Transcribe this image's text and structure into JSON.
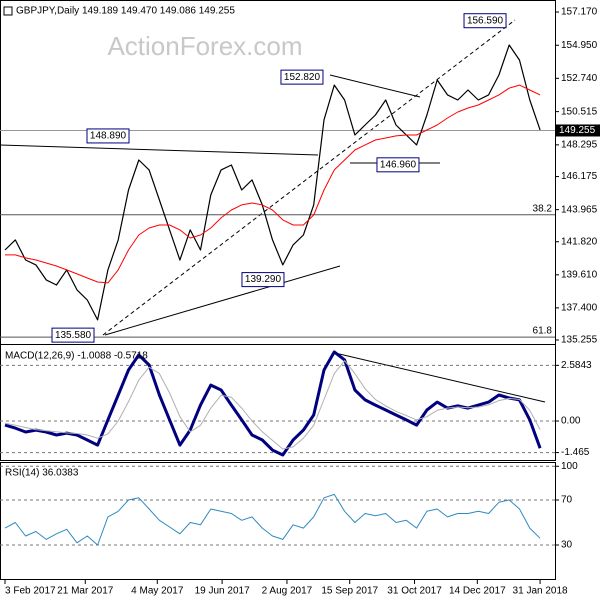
{
  "chart_data": [
    {
      "type": "line",
      "title": "GBPJPY,Daily  149.189 149.470 149.086 149.255",
      "watermark": "ActionForex.com",
      "x": [
        0,
        1,
        2,
        3,
        4,
        5,
        6,
        7,
        8,
        9,
        10,
        11,
        12,
        13,
        14,
        15,
        16,
        17,
        18,
        19,
        20,
        21,
        22,
        23,
        24,
        25,
        26,
        27,
        28,
        29,
        30,
        31,
        32,
        33,
        34,
        35,
        36,
        37,
        38,
        39,
        40,
        41,
        42,
        43,
        44,
        45,
        46,
        47,
        48,
        49,
        50,
        51,
        52
      ],
      "xlim": [
        -0.486,
        53.45
      ],
      "ylim": [
        134.92,
        157.64
      ],
      "grid": false,
      "yticks": [
        {
          "value": 157.17,
          "label": "157.170"
        },
        {
          "value": 154.95,
          "label": "154.950"
        },
        {
          "value": 152.74,
          "label": "152.740"
        },
        {
          "value": 150.515,
          "label": "150.515"
        },
        {
          "value": 148.295,
          "label": "148.295"
        },
        {
          "value": 146.175,
          "label": "146.175"
        },
        {
          "value": 143.965,
          "label": "143.965"
        },
        {
          "value": 141.82,
          "label": "141.820"
        },
        {
          "value": 139.61,
          "label": "139.610"
        },
        {
          "value": 137.4,
          "label": "137.400"
        },
        {
          "value": 135.255,
          "label": "135.255"
        }
      ],
      "series": [
        {
          "color": "#000000",
          "values": [
            141.27,
            141.94,
            140.6,
            140.27,
            139.27,
            138.93,
            139.94,
            138.6,
            137.93,
            136.6,
            139.94,
            141.94,
            145.28,
            147.28,
            146.62,
            144.61,
            142.61,
            140.6,
            142.61,
            141.27,
            144.95,
            146.62,
            146.95,
            145.28,
            145.95,
            144.28,
            141.94,
            140.27,
            141.61,
            142.27,
            144.28,
            149.96,
            152.29,
            151.29,
            148.95,
            149.62,
            150.29,
            151.29,
            149.62,
            148.95,
            148.29,
            150.29,
            152.63,
            151.63,
            151.29,
            151.96,
            151.29,
            151.63,
            152.96,
            154.97,
            153.96,
            151.29,
            149.29
          ]
        },
        {
          "color": "#ff0000",
          "values": [
            140.94,
            140.94,
            140.74,
            140.6,
            140.4,
            140.2,
            139.94,
            139.67,
            139.4,
            139.13,
            139.07,
            139.94,
            141.27,
            142.27,
            142.74,
            142.94,
            142.94,
            142.61,
            142.07,
            142.27,
            142.74,
            143.41,
            143.94,
            144.28,
            144.41,
            144.28,
            143.94,
            143.28,
            142.94,
            142.94,
            143.61,
            145.28,
            146.62,
            147.28,
            147.95,
            148.29,
            148.62,
            148.75,
            148.89,
            148.95,
            148.95,
            149.29,
            149.62,
            150.09,
            150.49,
            150.76,
            150.96,
            151.29,
            151.63,
            152.09,
            152.29,
            151.96,
            151.63
          ]
        }
      ],
      "current": {
        "label": "149.255",
        "value": 149.255
      },
      "levels": [
        {
          "label": "38.2",
          "value": 143.62
        },
        {
          "label": "61.8",
          "value": 135.45
        }
      ],
      "annotations": [
        {
          "label": "156.590",
          "value": 156.59,
          "x": 46.65
        },
        {
          "label": "152.820",
          "value": 152.82,
          "x": 28.86
        },
        {
          "label": "148.890",
          "value": 148.89,
          "x": 10.01
        },
        {
          "label": "146.960",
          "value": 146.96,
          "x": 38.19
        },
        {
          "label": "139.290",
          "value": 139.29,
          "x": 25.07
        },
        {
          "label": "135.580",
          "value": 135.58,
          "x": 6.61
        }
      ]
    },
    {
      "type": "line",
      "title": "MACD(12,26,9) -1.0088 -0.5718",
      "x": [
        0,
        1,
        2,
        3,
        4,
        5,
        6,
        7,
        8,
        9,
        10,
        11,
        12,
        13,
        14,
        15,
        16,
        17,
        18,
        19,
        20,
        21,
        22,
        23,
        24,
        25,
        26,
        27,
        28,
        29,
        30,
        31,
        32,
        33,
        34,
        35,
        36,
        37,
        38,
        39,
        40,
        41,
        42,
        43,
        44,
        45,
        46,
        47,
        48,
        49,
        50,
        51,
        52
      ],
      "xlim": [
        -0.486,
        53.45
      ],
      "ylim": [
        -1.81,
        3.53
      ],
      "grid": true,
      "yticks": [
        2.5843,
        {
          "value": 0,
          "label": "0.00"
        },
        -1.465
      ],
      "series": [
        {
          "color": "#000080",
          "values": [
            -0.19,
            -0.33,
            -0.51,
            -0.42,
            -0.51,
            -0.65,
            -0.56,
            -0.65,
            -0.88,
            -1.12,
            0.05,
            1.21,
            2.37,
            3.07,
            2.6,
            1.21,
            0.05,
            -1.12,
            -0.42,
            0.74,
            1.67,
            1.44,
            0.74,
            0.05,
            -0.65,
            -0.88,
            -1.35,
            -1.58,
            -0.88,
            -0.42,
            0.28,
            2.37,
            3.21,
            2.84,
            1.44,
            0.98,
            0.74,
            0.51,
            0.28,
            0.05,
            -0.19,
            0.51,
            0.88,
            0.6,
            0.7,
            0.6,
            0.74,
            0.88,
            1.21,
            1.07,
            0.98,
            0.05,
            -1.26
          ]
        },
        {
          "color": "#b0b0b0",
          "values": [
            -0.1,
            -0.2,
            -0.3,
            -0.4,
            -0.45,
            -0.5,
            -0.55,
            -0.58,
            -0.65,
            -0.8,
            -0.6,
            0.0,
            0.9,
            1.9,
            2.5,
            2.2,
            1.3,
            0.2,
            -0.5,
            -0.2,
            0.6,
            1.2,
            1.1,
            0.6,
            0.0,
            -0.5,
            -0.9,
            -1.3,
            -1.2,
            -0.8,
            -0.2,
            1.0,
            2.2,
            2.8,
            2.2,
            1.5,
            1.0,
            0.7,
            0.45,
            0.25,
            0.05,
            0.2,
            0.5,
            0.6,
            0.65,
            0.62,
            0.65,
            0.75,
            0.95,
            1.05,
            1.0,
            0.5,
            -0.4
          ]
        }
      ]
    },
    {
      "type": "line",
      "title": "RSI(14) 36.0383",
      "x": [
        0,
        1,
        2,
        3,
        4,
        5,
        6,
        7,
        8,
        9,
        10,
        11,
        12,
        13,
        14,
        15,
        16,
        17,
        18,
        19,
        20,
        21,
        22,
        23,
        24,
        25,
        26,
        27,
        28,
        29,
        30,
        31,
        32,
        33,
        34,
        35,
        36,
        37,
        38,
        39,
        40,
        41,
        42,
        43,
        44,
        45,
        46,
        47,
        48,
        49,
        50,
        51,
        52
      ],
      "xlim": [
        -0.486,
        53.45
      ],
      "ylim": [
        -1.1,
        103.8
      ],
      "grid": true,
      "yticks": [
        100,
        70,
        30
      ],
      "xticks": [
        {
          "value": 0,
          "label": "3 Feb 2017"
        },
        {
          "value": 7.8,
          "label": "21 Mar 2017"
        },
        {
          "value": 14.8,
          "label": "4 May 2017"
        },
        {
          "value": 21.1,
          "label": "19 Jun 2017"
        },
        {
          "value": 27.4,
          "label": "2 Aug 2017"
        },
        {
          "value": 33.5,
          "label": "15 Sep 2017"
        },
        {
          "value": 39.8,
          "label": "31 Oct 2017"
        },
        {
          "value": 45.9,
          "label": "14 Dec 2017"
        },
        {
          "value": 52,
          "label": "31 Jan 2018"
        }
      ],
      "series": [
        {
          "color": "#2e8bc0",
          "values": [
            45,
            50,
            38,
            42,
            35,
            40,
            44,
            32,
            38,
            30,
            55,
            60,
            70,
            72,
            62,
            52,
            46,
            40,
            50,
            48,
            62,
            60,
            58,
            52,
            55,
            45,
            38,
            35,
            48,
            45,
            55,
            72,
            75,
            60,
            50,
            58,
            56,
            58,
            50,
            52,
            45,
            60,
            62,
            55,
            58,
            58,
            60,
            58,
            68,
            70,
            62,
            45,
            36
          ]
        }
      ]
    }
  ]
}
